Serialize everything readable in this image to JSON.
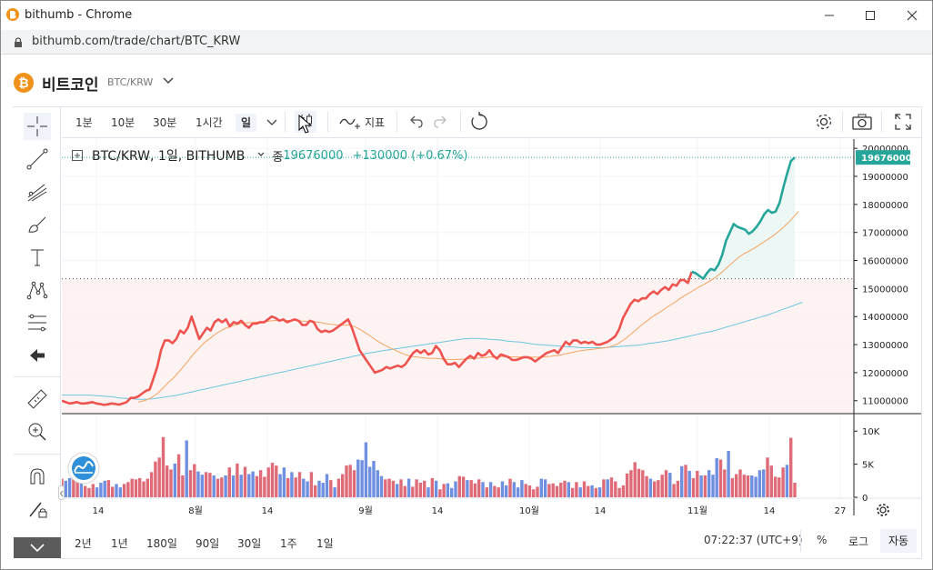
{
  "browser": {
    "window_title": "bithumb - Chrome",
    "url": "bithumb.com/trade/chart/BTC_KRW"
  },
  "header": {
    "coin_name": "비트코인",
    "pair": "BTC/KRW"
  },
  "toolbar": {
    "intervals": [
      "1분",
      "10분",
      "30분",
      "1시간",
      "일"
    ],
    "active_interval": "일",
    "indicator_label": "지표"
  },
  "legend": {
    "symbol": "BTC/KRW, 1일, BITHUMB",
    "close_label": "종",
    "close_value": "19676000",
    "change": "+130000 (+0.67%)"
  },
  "chart_data": {
    "type": "line",
    "title": "",
    "price_axis": {
      "ticks": [
        "20000000",
        "19000000",
        "18000000",
        "17000000",
        "16000000",
        "15000000",
        "14000000",
        "13000000",
        "12000000",
        "11000000"
      ],
      "last_price_label": "19676000",
      "ylim": [
        10700000,
        20200000
      ]
    },
    "volume_axis": {
      "ticks": [
        "10K",
        "5K",
        "0"
      ],
      "ylim": [
        0,
        12500
      ]
    },
    "x_axis": {
      "ticks": [
        "14",
        "8월",
        "14",
        "9월",
        "14",
        "10월",
        "14",
        "11월",
        "14",
        "27"
      ]
    },
    "colors": {
      "price_up": "#26a69a",
      "price_down": "#ef5350",
      "ma_fast": "#f4a460",
      "ma_slow": "#6cc6e0",
      "volume_up": "#e06b78",
      "volume_down": "#6f8fe0"
    },
    "series": [
      {
        "values": [
          11000000,
          10950000,
          10900000,
          10920000,
          10950000,
          10900000,
          10900000,
          10920000,
          10950000,
          10900000,
          10880000,
          10850000,
          10870000,
          10900000,
          10880000,
          10860000,
          10900000,
          10950000,
          11100000,
          11100000,
          11150000,
          11250000,
          11350000,
          11400000,
          11800000,
          12200000,
          12800000,
          13150000,
          13150000,
          13050000,
          13200000,
          13500000,
          13400000,
          13600000,
          14000000,
          13600000,
          13200000,
          13400000,
          13600000,
          13500000,
          13800000,
          13900000,
          13800000,
          13900000,
          13650000,
          13800000,
          13750000,
          13850000,
          13700000,
          13600000,
          13750000,
          13750000,
          13800000,
          13800000,
          13900000,
          14000000,
          13950000,
          13850000,
          13900000,
          13800000,
          13850000,
          13900000,
          13850000,
          13700000,
          13700000,
          13850000,
          13800000,
          13550000,
          13450000,
          13500000,
          13450000,
          13500000,
          13600000,
          13700000,
          13800000,
          13900000,
          13600000,
          13200000,
          12800000,
          12600000,
          12400000,
          12200000,
          12000000,
          12050000,
          12100000,
          12200000,
          12150000,
          12200000,
          12250000,
          12200000,
          12300000,
          12500000,
          12700000,
          12800000,
          12700000,
          12800000,
          12650000,
          12700000,
          12950000,
          12800000,
          12500000,
          12300000,
          12300000,
          12350000,
          12200000,
          12350000,
          12500000,
          12600000,
          12500000,
          12700000,
          12600000,
          12650000,
          12800000,
          12600000,
          12500000,
          12650000,
          12600000,
          12550000,
          12450000,
          12450000,
          12500000,
          12550000,
          12550000,
          12500000,
          12400000,
          12500000,
          12600000,
          12700000,
          12750000,
          12800000,
          12700000,
          12900000,
          13100000,
          13000000,
          13150000,
          13150000,
          13050000,
          13100000,
          13050000,
          13100000,
          13000000,
          13000000,
          13050000,
          13100000,
          13200000,
          13300000,
          13550000,
          13950000,
          14200000,
          14450000,
          14600000,
          14550000,
          14650000,
          14650000,
          14800000,
          14900000,
          14800000,
          14950000,
          15050000,
          14950000,
          15150000,
          15100000,
          15300000,
          15300000,
          15200000,
          15600000,
          15550000,
          15450000,
          15350000,
          15550000,
          15700000,
          15650000,
          15850000,
          16200000,
          16700000,
          17000000,
          17300000,
          17200000,
          17150000,
          17100000,
          16950000,
          17050000,
          17200000,
          17400000,
          17650000,
          17800000,
          17700000,
          17750000,
          18050000,
          18600000,
          19100000,
          19550000,
          19676000
        ]
      },
      {
        "values": [
          null,
          null,
          null,
          null,
          null,
          null,
          null,
          null,
          null,
          null,
          null,
          null,
          null,
          null,
          null,
          null,
          null,
          null,
          null,
          null,
          10950000,
          10980000,
          11020000,
          11080000,
          11160000,
          11250000,
          11380000,
          11520000,
          11660000,
          11780000,
          11920000,
          12080000,
          12240000,
          12400000,
          12580000,
          12740000,
          12880000,
          13020000,
          13140000,
          13240000,
          13350000,
          13440000,
          13520000,
          13590000,
          13630000,
          13690000,
          13720000,
          13760000,
          13770000,
          13780000,
          13790000,
          13800000,
          13810000,
          13820000,
          13830000,
          13850000,
          13860000,
          13860000,
          13870000,
          13860000,
          13860000,
          13860000,
          13850000,
          13840000,
          13830000,
          13830000,
          13820000,
          13800000,
          13780000,
          13750000,
          13730000,
          13720000,
          13700000,
          13690000,
          13690000,
          13700000,
          13680000,
          13620000,
          13550000,
          13470000,
          13380000,
          13290000,
          13190000,
          13100000,
          13020000,
          12950000,
          12880000,
          12820000,
          12760000,
          12700000,
          12640000,
          12600000,
          12570000,
          12560000,
          12540000,
          12530000,
          12510000,
          12510000,
          12510000,
          12500000,
          12480000,
          12470000,
          12470000,
          12470000,
          12470000,
          12480000,
          12490000,
          12500000,
          12510000,
          12520000,
          12530000,
          12540000,
          12560000,
          12560000,
          12560000,
          12570000,
          12570000,
          12570000,
          12560000,
          12560000,
          12560000,
          12560000,
          12560000,
          12550000,
          12550000,
          12550000,
          12560000,
          12570000,
          12580000,
          12600000,
          12610000,
          12640000,
          12670000,
          12700000,
          12730000,
          12760000,
          12780000,
          12800000,
          12820000,
          12830000,
          12850000,
          12870000,
          12880000,
          12900000,
          12940000,
          12990000,
          13060000,
          13150000,
          13250000,
          13370000,
          13480000,
          13600000,
          13720000,
          13820000,
          13920000,
          14020000,
          14100000,
          14190000,
          14280000,
          14380000,
          14460000,
          14550000,
          14650000,
          14740000,
          14820000,
          14900000,
          14980000,
          15060000,
          15130000,
          15210000,
          15290000,
          15380000,
          15480000,
          15590000,
          15720000,
          15840000,
          15960000,
          16080000,
          16180000,
          16260000,
          16330000,
          16410000,
          16490000,
          16580000,
          16670000,
          16760000,
          16850000,
          16950000,
          17060000,
          17180000,
          17310000,
          17450000,
          17600000,
          17750000
        ]
      },
      {
        "values": [
          11200000,
          11200000,
          11200000,
          11200000,
          11200000,
          11200000,
          11200000,
          11200000,
          11190000,
          11180000,
          11170000,
          11160000,
          11150000,
          11140000,
          11120000,
          11100000,
          11090000,
          11080000,
          11070000,
          11060000,
          11050000,
          11050000,
          11050000,
          11060000,
          11070000,
          11090000,
          11110000,
          11130000,
          11150000,
          11170000,
          11190000,
          11220000,
          11250000,
          11280000,
          11310000,
          11340000,
          11370000,
          11400000,
          11430000,
          11460000,
          11490000,
          11520000,
          11550000,
          11580000,
          11610000,
          11640000,
          11670000,
          11700000,
          11730000,
          11760000,
          11790000,
          11820000,
          11850000,
          11880000,
          11910000,
          11940000,
          11970000,
          12000000,
          12030000,
          12060000,
          12090000,
          12120000,
          12150000,
          12180000,
          12210000,
          12240000,
          12270000,
          12300000,
          12330000,
          12360000,
          12390000,
          12420000,
          12450000,
          12480000,
          12510000,
          12540000,
          12570000,
          12600000,
          12630000,
          12660000,
          12690000,
          12710000,
          12730000,
          12760000,
          12780000,
          12800000,
          12820000,
          12840000,
          12860000,
          12880000,
          12900000,
          12920000,
          12940000,
          12960000,
          12980000,
          13000000,
          13020000,
          13040000,
          13060000,
          13080000,
          13100000,
          13120000,
          13140000,
          13160000,
          13180000,
          13200000,
          13210000,
          13220000,
          13220000,
          13220000,
          13210000,
          13200000,
          13190000,
          13180000,
          13170000,
          13160000,
          13140000,
          13120000,
          13110000,
          13100000,
          13090000,
          13070000,
          13050000,
          13030000,
          13010000,
          13000000,
          12990000,
          12980000,
          12970000,
          12960000,
          12950000,
          12940000,
          12930000,
          12920000,
          12910000,
          12900000,
          12890000,
          12890000,
          12890000,
          12890000,
          12890000,
          12890000,
          12890000,
          12900000,
          12910000,
          12920000,
          12930000,
          12940000,
          12950000,
          12960000,
          12970000,
          12980000,
          13000000,
          13020000,
          13040000,
          13060000,
          13080000,
          13100000,
          13120000,
          13140000,
          13170000,
          13200000,
          13230000,
          13260000,
          13290000,
          13320000,
          13350000,
          13380000,
          13410000,
          13440000,
          13470000,
          13500000,
          13540000,
          13580000,
          13620000,
          13660000,
          13700000,
          13740000,
          13780000,
          13820000,
          13860000,
          13900000,
          13940000,
          13980000,
          14020000,
          14060000,
          14110000,
          14160000,
          14210000,
          14260000,
          14310000,
          14360000,
          14410000,
          14460000,
          14510000
        ]
      }
    ],
    "volume": [
      2800,
      2500,
      2900,
      3600,
      3200,
      2100,
      1700,
      1400,
      2000,
      1500,
      2200,
      2500,
      2600,
      1600,
      2000,
      1500,
      2000,
      2300,
      2800,
      2700,
      2900,
      2400,
      2800,
      3800,
      5400,
      6000,
      9100,
      4800,
      4200,
      5100,
      6500,
      3300,
      8600,
      4100,
      5000,
      3900,
      3400,
      3800,
      3700,
      3300,
      2800,
      3000,
      3300,
      4500,
      3300,
      5100,
      3400,
      4600,
      3500,
      3900,
      3200,
      4100,
      3100,
      4500,
      5200,
      4800,
      3500,
      4500,
      2900,
      3800,
      3000,
      3800,
      2800,
      2400,
      3800,
      1800,
      2500,
      2200,
      3500,
      2600,
      1500,
      2800,
      3500,
      4800,
      4900,
      4100,
      5700,
      5600,
      8300,
      4600,
      5500,
      4100,
      3200,
      2700,
      2800,
      2500,
      2000,
      2700,
      1700,
      2800,
      1600,
      2700,
      2200,
      2500,
      1500,
      2900,
      2500,
      1200,
      2000,
      2100,
      1400,
      2400,
      3200,
      3100,
      2600,
      2600,
      2100,
      2700,
      2300,
      1500,
      2300,
      1700,
      1500,
      2400,
      1800,
      2800,
      2300,
      1500,
      2600,
      2000,
      1800,
      1200,
      1600,
      2800,
      2700,
      2000,
      2100,
      1700,
      2200,
      2500,
      2300,
      1400,
      2300,
      1500,
      2400,
      1700,
      1800,
      1400,
      1500,
      2700,
      2700,
      3000,
      2400,
      1400,
      1800,
      3600,
      4100,
      5300,
      4300,
      4100,
      3200,
      2800,
      2400,
      2600,
      3400,
      4100,
      3700,
      2000,
      2500,
      4700,
      4900,
      4000,
      2900,
      4000,
      3300,
      3300,
      4100,
      3400,
      5900,
      5700,
      4200,
      7000,
      2900,
      3500,
      4200,
      3400,
      3300,
      3300,
      3100,
      4100,
      4200,
      6000,
      4800,
      3100,
      3000,
      4500,
      4900,
      9000,
      2200
    ]
  }
}
